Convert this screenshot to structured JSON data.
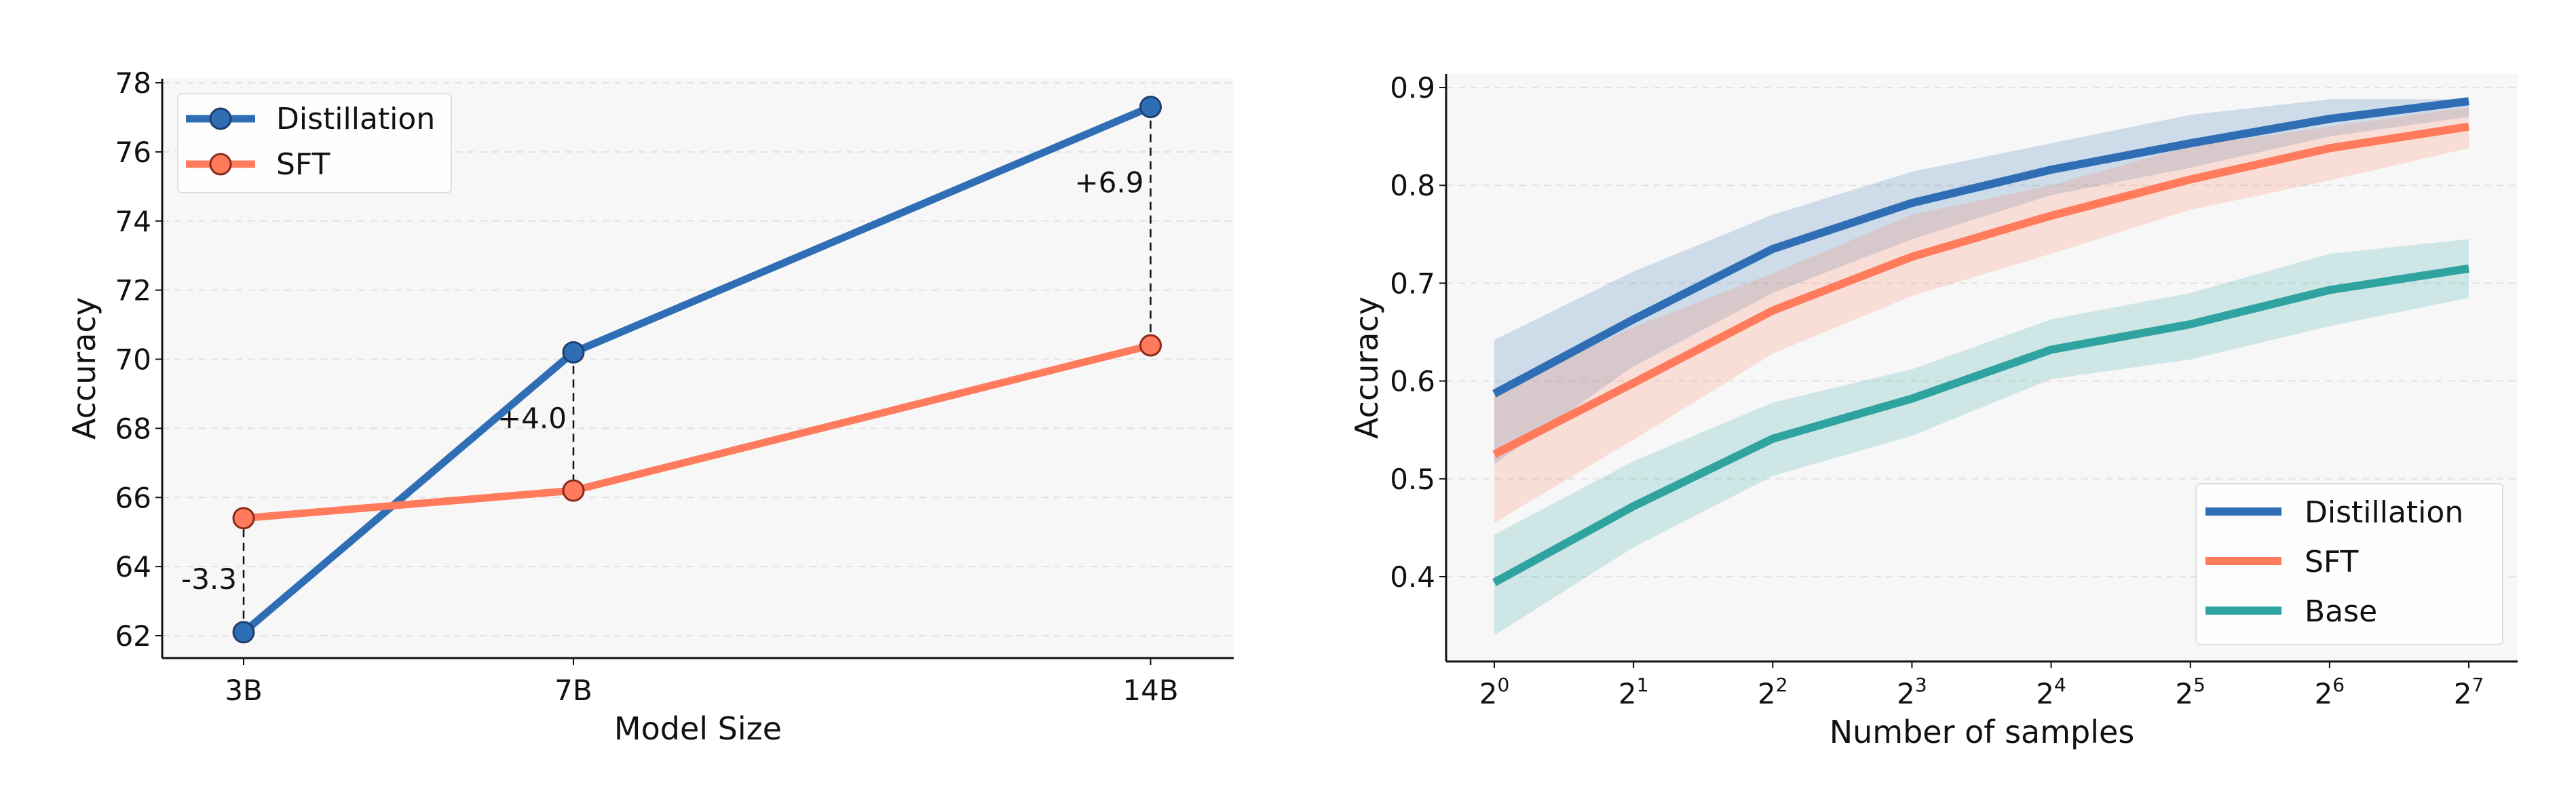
{
  "chart_data": [
    {
      "type": "line",
      "xlabel": "Model Size",
      "ylabel": "Accuracy",
      "categories": [
        "3B",
        "7B",
        "14B"
      ],
      "x": [
        3,
        7,
        14
      ],
      "ylim": [
        61.5,
        78
      ],
      "yticks": [
        "62",
        "64",
        "66",
        "68",
        "70",
        "72",
        "74",
        "76",
        "78"
      ],
      "grid": true,
      "legend_position": "top-left",
      "series": [
        {
          "name": "Distillation",
          "values": [
            62.1,
            70.2,
            77.3
          ],
          "color": "#2f6eb5"
        },
        {
          "name": "SFT",
          "values": [
            65.4,
            66.2,
            70.4
          ],
          "color": "#ff7b5c"
        }
      ],
      "annotations": [
        "-3.3",
        "+4.0",
        "+6.9"
      ]
    },
    {
      "type": "line",
      "xlabel": "Number of samples",
      "ylabel": "Accuracy",
      "x": [
        1,
        2,
        4,
        8,
        16,
        32,
        64,
        128
      ],
      "xscale": "log2",
      "xticks": [
        {
          "base": "2",
          "exp": "0"
        },
        {
          "base": "2",
          "exp": "1"
        },
        {
          "base": "2",
          "exp": "2"
        },
        {
          "base": "2",
          "exp": "3"
        },
        {
          "base": "2",
          "exp": "4"
        },
        {
          "base": "2",
          "exp": "5"
        },
        {
          "base": "2",
          "exp": "6"
        },
        {
          "base": "2",
          "exp": "7"
        }
      ],
      "ylim": [
        0.315,
        0.915
      ],
      "yticks": [
        "0.4",
        "0.5",
        "0.6",
        "0.7",
        "0.8",
        "0.9"
      ],
      "grid": true,
      "legend_position": "bottom-right",
      "series": [
        {
          "name": "Distillation",
          "color": "#2f6eb5",
          "values": [
            0.587,
            0.663,
            0.735,
            0.782,
            0.816,
            0.843,
            0.868,
            0.886
          ],
          "upper": [
            0.642,
            0.712,
            0.77,
            0.814,
            0.843,
            0.872,
            0.888,
            0.888
          ],
          "lower": [
            0.515,
            0.615,
            0.69,
            0.745,
            0.79,
            0.818,
            0.85,
            0.87
          ]
        },
        {
          "name": "SFT",
          "color": "#ff7b5c",
          "values": [
            0.525,
            0.598,
            0.672,
            0.727,
            0.769,
            0.806,
            0.838,
            0.86
          ],
          "upper": [
            0.59,
            0.655,
            0.71,
            0.77,
            0.8,
            0.84,
            0.86,
            0.88
          ],
          "lower": [
            0.455,
            0.54,
            0.628,
            0.687,
            0.73,
            0.775,
            0.805,
            0.838
          ]
        },
        {
          "name": "Base",
          "color": "#2fa3a0",
          "values": [
            0.394,
            0.472,
            0.541,
            0.582,
            0.632,
            0.658,
            0.693,
            0.715
          ],
          "upper": [
            0.443,
            0.518,
            0.578,
            0.612,
            0.663,
            0.69,
            0.73,
            0.745
          ],
          "lower": [
            0.34,
            0.43,
            0.503,
            0.544,
            0.602,
            0.622,
            0.656,
            0.685
          ]
        }
      ]
    }
  ]
}
